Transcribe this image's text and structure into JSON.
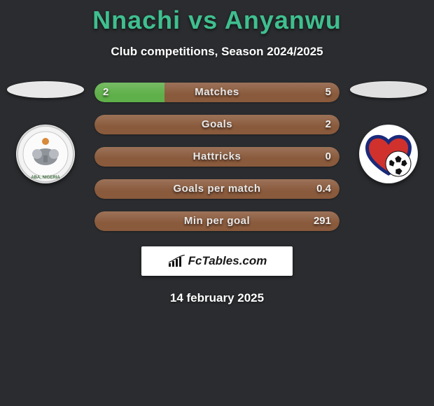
{
  "title_color": "#3fbf8f",
  "background_color": "#2a2c2f",
  "player_left": {
    "name": "Nnachi",
    "pill_color": "#e8e8e8",
    "club_logo": "enyimba"
  },
  "player_right": {
    "name": "Anyanwu",
    "pill_color": "#e0e0e0",
    "club_logo": "heartland"
  },
  "vs_text": "vs",
  "subtitle": "Club competitions, Season 2024/2025",
  "bar_left_color": "#5fb04a",
  "bar_right_color": "#8a5a3c",
  "bars": [
    {
      "label": "Matches",
      "left": "2",
      "right": "5",
      "left_pct": 28.6,
      "right_pct": 71.4
    },
    {
      "label": "Goals",
      "left": "",
      "right": "2",
      "left_pct": 0,
      "right_pct": 100
    },
    {
      "label": "Hattricks",
      "left": "",
      "right": "0",
      "left_pct": 0,
      "right_pct": 100
    },
    {
      "label": "Goals per match",
      "left": "",
      "right": "0.4",
      "left_pct": 0,
      "right_pct": 100
    },
    {
      "label": "Min per goal",
      "left": "",
      "right": "291",
      "left_pct": 0,
      "right_pct": 100
    }
  ],
  "brand": "FcTables.com",
  "date": "14 february 2025"
}
